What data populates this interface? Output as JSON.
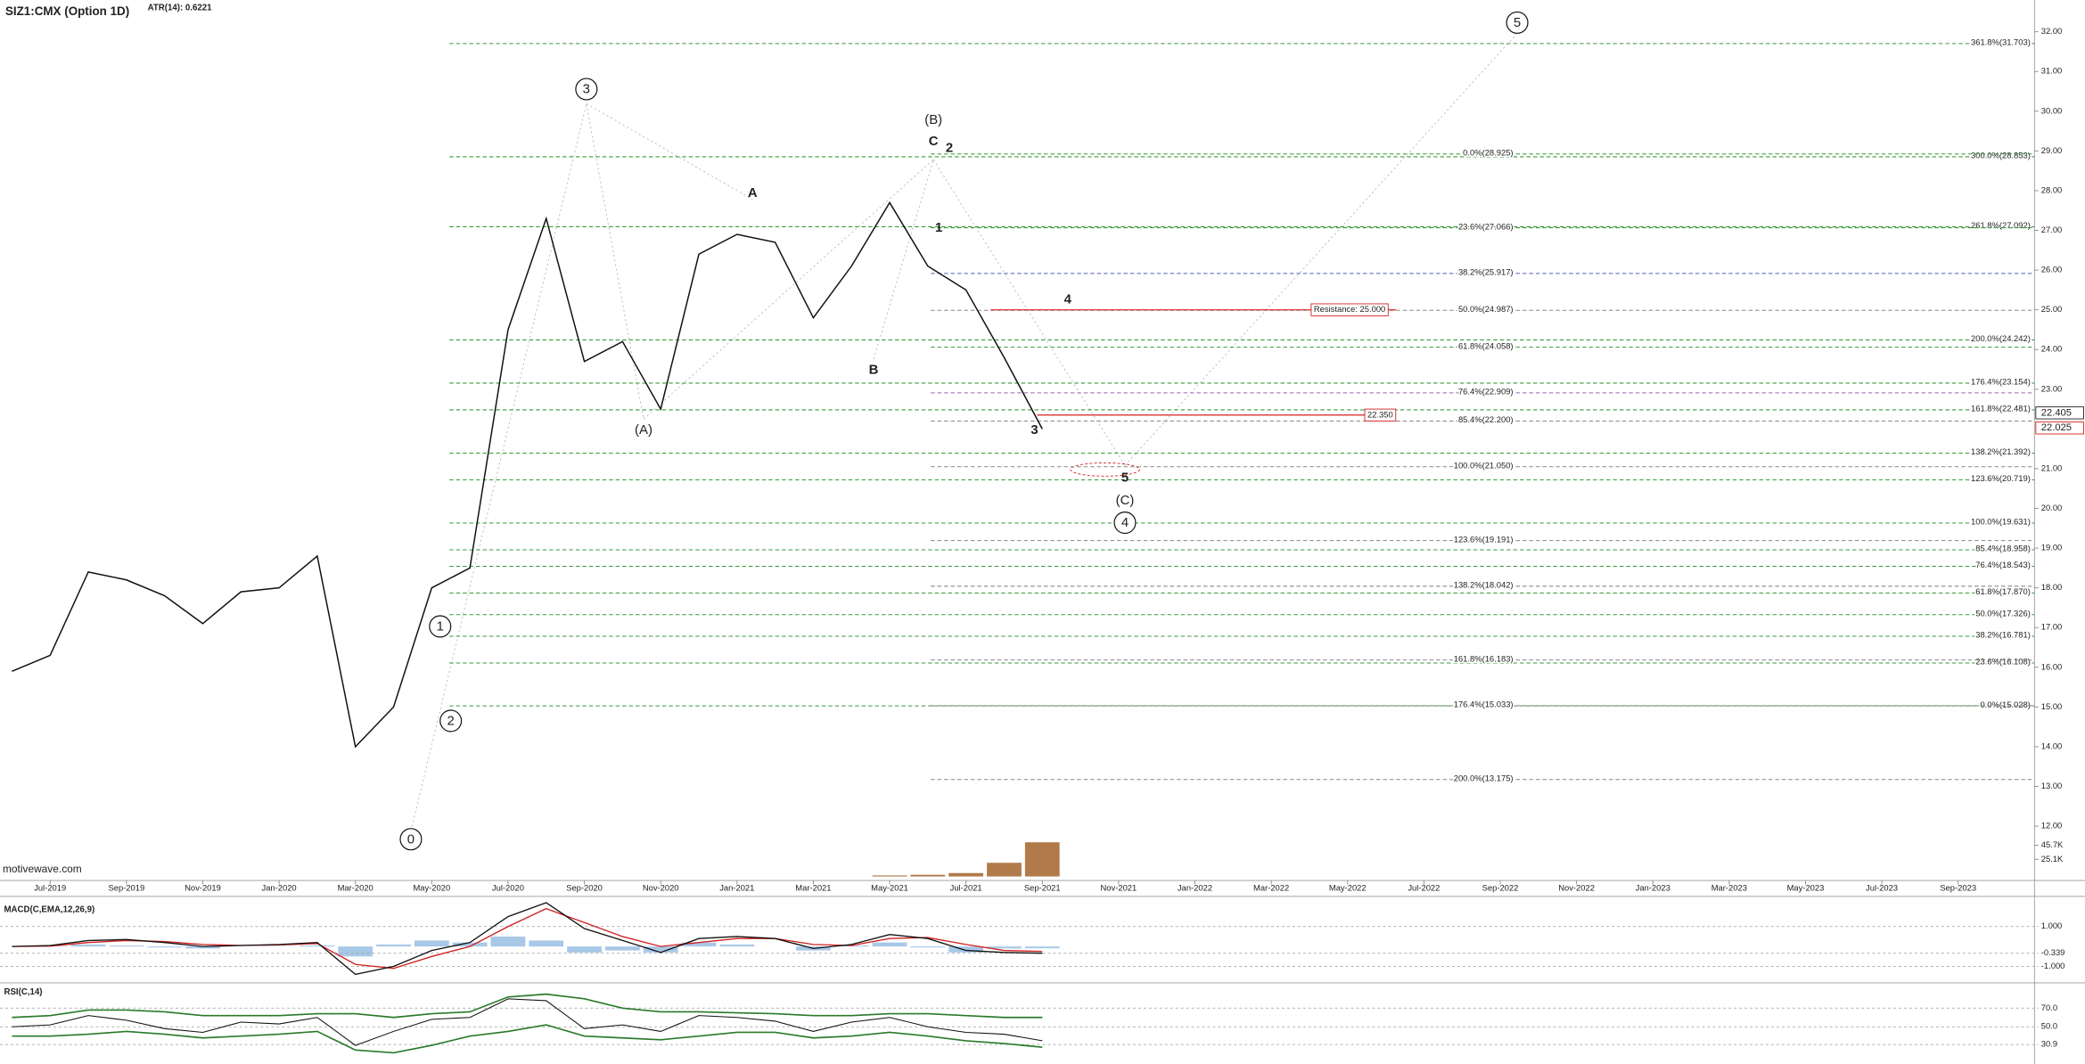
{
  "chart_data": {
    "type": "line",
    "title": "SIZ1:CMX (Option 1D)",
    "indicator": "ATR(14): 0.6221",
    "watermark": "motivewave.com",
    "x": [
      "2019-06",
      "2019-07",
      "2019-08",
      "2019-09",
      "2019-10",
      "2019-11",
      "2019-12",
      "2020-01",
      "2020-02",
      "2020-03",
      "2020-04",
      "2020-05",
      "2020-06",
      "2020-07",
      "2020-08",
      "2020-09",
      "2020-10",
      "2020-11",
      "2020-12",
      "2021-01",
      "2021-02",
      "2021-03",
      "2021-04",
      "2021-05",
      "2021-06",
      "2021-07",
      "2021-08",
      "2021-09"
    ],
    "values": [
      15.9,
      16.3,
      18.4,
      18.2,
      17.8,
      17.1,
      17.9,
      18.0,
      18.8,
      14.0,
      15.0,
      18.0,
      18.5,
      24.5,
      27.3,
      23.7,
      24.2,
      22.5,
      26.4,
      26.9,
      26.7,
      24.8,
      26.1,
      27.7,
      26.1,
      25.5,
      23.8,
      22.0
    ],
    "color": "#111111",
    "xlim": [
      "2019-06",
      "2023-11"
    ],
    "xticks": [
      {
        "value": "2019-07",
        "label": "Jul-2019"
      },
      {
        "value": "2019-09",
        "label": "Sep-2019"
      },
      {
        "value": "2019-11",
        "label": "Nov-2019"
      },
      {
        "value": "2020-01",
        "label": "Jan-2020"
      },
      {
        "value": "2020-03",
        "label": "Mar-2020"
      },
      {
        "value": "2020-05",
        "label": "May-2020"
      },
      {
        "value": "2020-07",
        "label": "Jul-2020"
      },
      {
        "value": "2020-09",
        "label": "Sep-2020"
      },
      {
        "value": "2020-11",
        "label": "Nov-2020"
      },
      {
        "value": "2021-01",
        "label": "Jan-2021"
      },
      {
        "value": "2021-03",
        "label": "Mar-2021"
      },
      {
        "value": "2021-05",
        "label": "May-2021"
      },
      {
        "value": "2021-07",
        "label": "Jul-2021"
      },
      {
        "value": "2021-09",
        "label": "Sep-2021"
      },
      {
        "value": "2021-11",
        "label": "Nov-2021"
      },
      {
        "value": "2022-01",
        "label": "Jan-2022"
      },
      {
        "value": "2022-03",
        "label": "Mar-2022"
      },
      {
        "value": "2022-05",
        "label": "May-2022"
      },
      {
        "value": "2022-07",
        "label": "Jul-2022"
      },
      {
        "value": "2022-09",
        "label": "Sep-2022"
      },
      {
        "value": "2022-11",
        "label": "Nov-2022"
      },
      {
        "value": "2023-01",
        "label": "Jan-2023"
      },
      {
        "value": "2023-03",
        "label": "Mar-2023"
      },
      {
        "value": "2023-05",
        "label": "May-2023"
      },
      {
        "value": "2023-07",
        "label": "Jul-2023"
      },
      {
        "value": "2023-09",
        "label": "Sep-2023"
      }
    ],
    "ylim": [
      10.7,
      32.8
    ],
    "yticks": [
      {
        "value": 32,
        "label": "32.00"
      },
      {
        "value": 31,
        "label": "31.00"
      },
      {
        "value": 30,
        "label": "30.00"
      },
      {
        "value": 29,
        "label": "29.00"
      },
      {
        "value": 28,
        "label": "28.00"
      },
      {
        "value": 27,
        "label": "27.00"
      },
      {
        "value": 26,
        "label": "26.00"
      },
      {
        "value": 25,
        "label": "25.00"
      },
      {
        "value": 24,
        "label": "24.00"
      },
      {
        "value": 23,
        "label": "23.00"
      },
      {
        "value": 21,
        "label": "21.00"
      },
      {
        "value": 20,
        "label": "20.00"
      },
      {
        "value": 19,
        "label": "19.00"
      },
      {
        "value": 18,
        "label": "18.00"
      },
      {
        "value": 17,
        "label": "17.00"
      },
      {
        "value": 16,
        "label": "16.00"
      },
      {
        "value": 15,
        "label": "15.00"
      },
      {
        "value": 14,
        "label": "14.00"
      },
      {
        "value": 13,
        "label": "13.00"
      },
      {
        "value": 12,
        "label": "12.00"
      }
    ],
    "last_price_labels": [
      {
        "value": 22.405,
        "label": "22.405",
        "color": "#222222"
      },
      {
        "value": 22.025,
        "label": "22.025",
        "color": "#d62020"
      }
    ],
    "volume": {
      "x": [
        "2021-05",
        "2021-06",
        "2021-07",
        "2021-08",
        "2021-09"
      ],
      "values": [
        1500,
        2500,
        5000,
        20000,
        50000
      ],
      "color": "#b07a4a",
      "ylim": [
        0,
        100000
      ],
      "yticks": [
        {
          "value": 45700,
          "label": "45.7K"
        },
        {
          "value": 25100,
          "label": "25.1K"
        }
      ]
    },
    "fib_extension_levels": [
      {
        "value": 31.703,
        "label": "361.8%(31.703)",
        "color": "#3a9a3a"
      },
      {
        "value": 28.853,
        "label": "300.0%(28.853)",
        "color": "#3a9a3a"
      },
      {
        "value": 27.092,
        "label": "261.8%(27.092)",
        "color": "#3a9a3a"
      },
      {
        "value": 24.242,
        "label": "200.0%(24.242)",
        "color": "#3a9a3a"
      },
      {
        "value": 23.154,
        "label": "176.4%(23.154)",
        "color": "#3a9a3a"
      },
      {
        "value": 22.481,
        "label": "161.8%(22.481)",
        "color": "#3a9a3a"
      },
      {
        "value": 21.392,
        "label": "138.2%(21.392)",
        "color": "#3a9a3a"
      },
      {
        "value": 20.719,
        "label": "123.6%(20.719)",
        "color": "#3a9a3a"
      },
      {
        "value": 19.631,
        "label": "100.0%(19.631)",
        "color": "#3a9a3a"
      },
      {
        "value": 18.958,
        "label": "85.4%(18.958)",
        "color": "#3a9a3a"
      },
      {
        "value": 18.543,
        "label": "76.4%(18.543)",
        "color": "#3a9a3a"
      },
      {
        "value": 17.87,
        "label": "61.8%(17.870)",
        "color": "#3a9a3a"
      },
      {
        "value": 17.326,
        "label": "50.0%(17.326)",
        "color": "#3a9a3a"
      },
      {
        "value": 16.781,
        "label": "38.2%(16.781)",
        "color": "#3a9a3a"
      },
      {
        "value": 16.108,
        "label": "23.6%(16.108)",
        "color": "#3a9a3a"
      },
      {
        "value": 15.028,
        "label": "0.0%(15.028)",
        "color": "#3a9a3a"
      }
    ],
    "fib_retracement_levels": [
      {
        "value": 28.925,
        "label": "0.0%(28.925)",
        "color": "#3a9a3a"
      },
      {
        "value": 27.066,
        "label": "23.6%(27.066)",
        "color": "#3a9a3a"
      },
      {
        "value": 25.917,
        "label": "38.2%(25.917)",
        "color": "#6670c0"
      },
      {
        "value": 24.987,
        "label": "50.0%(24.987)",
        "color": "#888888"
      },
      {
        "value": 24.058,
        "label": "61.8%(24.058)",
        "color": "#3a9a3a"
      },
      {
        "value": 22.909,
        "label": "76.4%(22.909)",
        "color": "#9a66b0"
      },
      {
        "value": 22.2,
        "label": "85.4%(22.200)",
        "color": "#888888"
      },
      {
        "value": 21.05,
        "label": "100.0%(21.050)",
        "color": "#888888"
      },
      {
        "value": 19.191,
        "label": "123.6%(19.191)",
        "color": "#888888"
      },
      {
        "value": 18.042,
        "label": "138.2%(18.042)",
        "color": "#888888"
      },
      {
        "value": 16.183,
        "label": "161.8%(16.183)",
        "color": "#888888"
      },
      {
        "value": 15.033,
        "label": "176.4%(15.033)",
        "color": "#888888"
      },
      {
        "value": 13.175,
        "label": "200.0%(13.175)",
        "color": "#888888"
      }
    ],
    "resistance": [
      {
        "value": 25.0,
        "label": "Resistance: 25.000",
        "color": "#d62020"
      },
      {
        "value": 22.35,
        "label": "22.350",
        "color": "#d62020"
      }
    ],
    "waves": [
      {
        "label": "3",
        "circled": true
      },
      {
        "label": "(A)",
        "circled": false
      },
      {
        "label": "A",
        "circled": false
      },
      {
        "label": "B",
        "circled": false
      },
      {
        "label": "(B)",
        "circled": false
      },
      {
        "label": "C",
        "circled": false
      },
      {
        "label": "2",
        "circled": false
      },
      {
        "label": "1",
        "circled": false
      },
      {
        "label": "4",
        "circled": false
      },
      {
        "label": "3",
        "circled": false
      },
      {
        "label": "5",
        "circled": false
      },
      {
        "label": "(C)",
        "circled": false
      },
      {
        "label": "4",
        "circled": true
      },
      {
        "label": "5",
        "circled": true
      },
      {
        "label": "1",
        "circled": true
      },
      {
        "label": "2",
        "circled": true
      },
      {
        "label": "0",
        "circled": true
      }
    ],
    "macd": {
      "title": "MACD(C,EMA,12,26,9)",
      "values": [
        0.0,
        0.05,
        0.3,
        0.35,
        0.2,
        0.0,
        0.05,
        0.1,
        0.2,
        -1.4,
        -1.0,
        -0.2,
        0.2,
        1.5,
        2.2,
        0.9,
        0.3,
        -0.3,
        0.4,
        0.5,
        0.4,
        -0.1,
        0.1,
        0.6,
        0.4,
        -0.2,
        -0.3,
        -0.34
      ],
      "signal": [
        0.0,
        0.02,
        0.2,
        0.3,
        0.25,
        0.1,
        0.05,
        0.08,
        0.15,
        -0.9,
        -1.1,
        -0.5,
        0.0,
        1.0,
        1.9,
        1.2,
        0.5,
        0.0,
        0.2,
        0.4,
        0.4,
        0.1,
        0.05,
        0.4,
        0.45,
        0.1,
        -0.2,
        -0.25
      ],
      "histogram": [
        0.0,
        0.03,
        0.1,
        0.05,
        -0.05,
        -0.1,
        0.0,
        0.02,
        0.05,
        -0.5,
        0.1,
        0.3,
        0.2,
        0.5,
        0.3,
        -0.3,
        -0.2,
        -0.3,
        0.2,
        0.1,
        0.0,
        -0.2,
        0.05,
        0.2,
        -0.05,
        -0.3,
        -0.1,
        -0.09
      ],
      "colors": {
        "macd": "#111111",
        "signal": "#d02020",
        "histogram": "#a8c8e8"
      },
      "ylim": [
        -1.76,
        2.38
      ],
      "yticks": [
        {
          "value": 1,
          "label": "1.000"
        },
        {
          "value": -0.339,
          "label": "-0.339"
        },
        {
          "value": -1,
          "label": "-1.000"
        }
      ]
    },
    "rsi": {
      "title": "RSI(C,14)",
      "values": [
        50,
        52,
        62,
        57,
        48,
        44,
        55,
        53,
        60,
        30,
        45,
        58,
        60,
        80,
        78,
        48,
        52,
        45,
        62,
        60,
        56,
        45,
        55,
        60,
        50,
        44,
        42,
        35
      ],
      "upper": [
        60,
        62,
        68,
        68,
        66,
        62,
        62,
        62,
        64,
        64,
        60,
        64,
        66,
        82,
        85,
        80,
        70,
        66,
        66,
        65,
        64,
        62,
        62,
        64,
        64,
        62,
        60,
        60
      ],
      "lower": [
        40,
        40,
        42,
        45,
        42,
        38,
        40,
        42,
        45,
        25,
        22,
        30,
        40,
        45,
        52,
        40,
        38,
        36,
        40,
        44,
        44,
        38,
        40,
        44,
        40,
        35,
        32,
        28
      ],
      "colors": {
        "rsi": "#111111",
        "bands": "#2a7a2a"
      },
      "ylim": [
        10,
        95.7
      ],
      "yticks": [
        {
          "value": 70,
          "label": "70.0"
        },
        {
          "value": 50,
          "label": "50.0"
        },
        {
          "value": 30.9,
          "label": "30.9"
        }
      ]
    }
  }
}
